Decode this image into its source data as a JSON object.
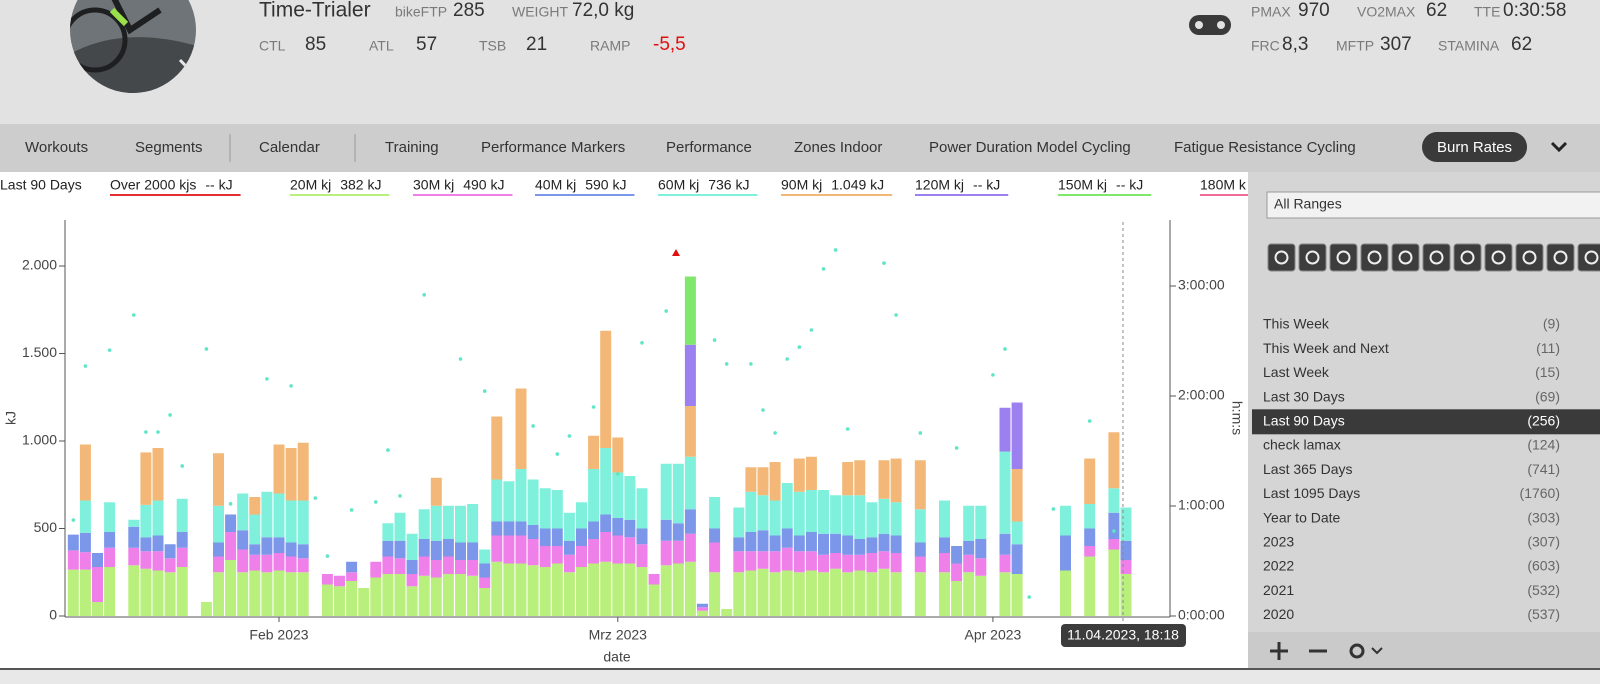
{
  "header": {
    "name": "Time-Trialer",
    "stats": [
      {
        "label": "bikeFTP",
        "value": "285"
      },
      {
        "label": "WEIGHT",
        "value": "72,0 kg"
      },
      {
        "label": "CTL",
        "value": "85"
      },
      {
        "label": "ATL",
        "value": "57"
      },
      {
        "label": "TSB",
        "value": "21"
      },
      {
        "label": "RAMP",
        "value": "-5,5",
        "color": "#e01010"
      },
      {
        "label": "PMAX",
        "value": "970"
      },
      {
        "label": "VO2MAX",
        "value": "62"
      },
      {
        "label": "TTE",
        "value": "0:30:58"
      },
      {
        "label": "FRC",
        "value": "8,3"
      },
      {
        "label": "MFTP",
        "value": "307"
      },
      {
        "label": "STAMINA",
        "value": "62"
      }
    ]
  },
  "nav": {
    "items": [
      "Workouts",
      "Segments",
      "Calendar",
      "Training",
      "Performance Markers",
      "Performance",
      "Zones Indoor",
      "Power Duration Model Cycling",
      "Fatigue Resistance Cycling",
      "Burn Rates"
    ],
    "active": 9
  },
  "sidebar": {
    "dropdown": "All Ranges",
    "ranges": [
      {
        "label": "This Week",
        "count": "(9)"
      },
      {
        "label": "This Week and Next",
        "count": "(11)"
      },
      {
        "label": "Last Week",
        "count": "(15)"
      },
      {
        "label": "Last 30 Days",
        "count": "(69)"
      },
      {
        "label": "Last 90 Days",
        "count": "(256)"
      },
      {
        "label": "check lamax",
        "count": "(124)"
      },
      {
        "label": "Last 365 Days",
        "count": "(741)"
      },
      {
        "label": "Last 1095 Days",
        "count": "(1760)"
      },
      {
        "label": "Year to Date",
        "count": "(303)"
      },
      {
        "label": "2023",
        "count": "(307)"
      },
      {
        "label": "2022",
        "count": "(603)"
      },
      {
        "label": "2021",
        "count": "(532)"
      },
      {
        "label": "2020",
        "count": "(537)"
      }
    ],
    "selected": 4
  },
  "chart_data": {
    "type": "bar",
    "stacked": true,
    "range_label": "Last 90 Days",
    "ylabel": "kJ",
    "y2label": "h:m:s",
    "xlabel": "date",
    "tooltip": "11.04.2023, 18:18",
    "ylim": [
      0,
      2263
    ],
    "yticks": [
      0,
      500,
      {
        "value": 1000,
        "label": "1.000"
      },
      {
        "value": 1500,
        "label": "1.500"
      },
      {
        "value": 2000,
        "label": "2.000"
      }
    ],
    "y2lim": [
      0,
      12960
    ],
    "y2ticks": [
      {
        "value": 0,
        "label": "0:00:00"
      },
      {
        "value": 3600,
        "label": "1:00:00"
      },
      {
        "value": 7200,
        "label": "2:00:00"
      },
      {
        "value": 10800,
        "label": "3:00:00"
      }
    ],
    "categories": [
      null,
      null,
      null,
      null,
      null,
      null,
      null,
      null,
      null,
      null,
      null,
      null,
      null,
      null,
      null,
      null,
      null,
      null,
      "Feb 2023",
      null,
      null,
      null,
      null,
      null,
      null,
      null,
      null,
      null,
      null,
      null,
      null,
      null,
      null,
      null,
      null,
      null,
      null,
      null,
      null,
      null,
      null,
      null,
      null,
      null,
      null,
      null,
      "Mrz 2023",
      null,
      null,
      null,
      null,
      null,
      null,
      null,
      null,
      null,
      null,
      null,
      null,
      null,
      null,
      null,
      null,
      null,
      null,
      null,
      null,
      null,
      null,
      null,
      null,
      null,
      null,
      null,
      null,
      null,
      null,
      "Apr 2023",
      null,
      null,
      null,
      null,
      null,
      null,
      null,
      null,
      null,
      null,
      null,
      null,
      null
    ],
    "legend_extra": [
      {
        "name": "Over 2000 kjs",
        "value": "-- kJ",
        "color": "#e53030"
      },
      {
        "name": "180M k",
        "color": "#f06a9a"
      }
    ],
    "series": [
      {
        "name": "20M kj",
        "legend_value": "382 kJ",
        "color": "#b9ef7c",
        "values": [
          null,
          265,
          265,
          80,
          280,
          null,
          290,
          270,
          260,
          250,
          280,
          null,
          80,
          250,
          320,
          250,
          260,
          250,
          260,
          250,
          250,
          null,
          180,
          170,
          200,
          160,
          220,
          240,
          240,
          170,
          230,
          220,
          240,
          240,
          230,
          160,
          310,
          300,
          300,
          290,
          280,
          300,
          250,
          280,
          300,
          310,
          300,
          300,
          280,
          180,
          290,
          300,
          310,
          30,
          250,
          40,
          250,
          260,
          270,
          250,
          260,
          250,
          260,
          250,
          270,
          250,
          260,
          250,
          270,
          250,
          null,
          250,
          null,
          250,
          200,
          250,
          230,
          null,
          250,
          240,
          null,
          null,
          null,
          260,
          null,
          340,
          null,
          380,
          240,
          null,
          null
        ]
      },
      {
        "name": "30M kj",
        "legend_value": "490 kJ",
        "color": "#ef7fe9",
        "values": [
          null,
          110,
          100,
          200,
          110,
          null,
          100,
          100,
          110,
          80,
          110,
          null,
          0,
          90,
          160,
          130,
          90,
          100,
          100,
          90,
          80,
          null,
          60,
          60,
          50,
          0,
          90,
          100,
          90,
          70,
          110,
          100,
          100,
          80,
          90,
          60,
          150,
          160,
          160,
          150,
          120,
          100,
          100,
          120,
          140,
          170,
          160,
          150,
          130,
          60,
          140,
          130,
          160,
          20,
          170,
          0,
          120,
          110,
          100,
          120,
          130,
          120,
          110,
          100,
          90,
          100,
          90,
          110,
          100,
          110,
          null,
          90,
          null,
          110,
          100,
          100,
          100,
          null,
          100,
          0,
          null,
          null,
          null,
          0,
          null,
          60,
          null,
          60,
          80,
          null,
          null
        ]
      },
      {
        "name": "40M kj",
        "legend_value": "590 kJ",
        "color": "#7c96e9",
        "values": [
          null,
          90,
          110,
          80,
          90,
          null,
          120,
          80,
          90,
          80,
          90,
          null,
          0,
          80,
          100,
          110,
          60,
          100,
          90,
          80,
          80,
          null,
          0,
          0,
          60,
          0,
          0,
          90,
          100,
          80,
          100,
          110,
          100,
          100,
          100,
          80,
          80,
          80,
          80,
          80,
          100,
          100,
          80,
          100,
          100,
          100,
          100,
          100,
          90,
          0,
          120,
          100,
          140,
          20,
          80,
          0,
          80,
          110,
          120,
          90,
          110,
          90,
          110,
          120,
          110,
          110,
          90,
          90,
          100,
          100,
          null,
          80,
          null,
          90,
          100,
          80,
          110,
          null,
          120,
          170,
          null,
          null,
          null,
          200,
          null,
          100,
          null,
          150,
          110,
          null,
          null
        ]
      },
      {
        "name": "60M kj",
        "legend_value": "736 kJ",
        "color": "#7ff0dc",
        "values": [
          null,
          0,
          185,
          0,
          170,
          null,
          40,
          185,
          200,
          0,
          190,
          null,
          0,
          210,
          0,
          210,
          170,
          260,
          250,
          240,
          250,
          null,
          0,
          0,
          0,
          0,
          0,
          100,
          160,
          150,
          170,
          200,
          190,
          210,
          220,
          80,
          240,
          230,
          300,
          260,
          230,
          220,
          160,
          150,
          300,
          380,
          260,
          250,
          230,
          0,
          320,
          340,
          300,
          0,
          180,
          0,
          170,
          230,
          200,
          200,
          260,
          250,
          240,
          250,
          220,
          230,
          250,
          200,
          200,
          190,
          null,
          190,
          null,
          210,
          0,
          200,
          190,
          null,
          470,
          130,
          null,
          null,
          null,
          170,
          null,
          140,
          null,
          140,
          190,
          null,
          null
        ]
      },
      {
        "name": "90M kj",
        "legend_value": "1.049 kJ",
        "color": "#f3b877",
        "values": [
          null,
          0,
          320,
          0,
          0,
          null,
          0,
          300,
          300,
          0,
          0,
          null,
          0,
          300,
          0,
          0,
          100,
          0,
          280,
          300,
          330,
          null,
          0,
          0,
          0,
          0,
          0,
          0,
          0,
          0,
          0,
          160,
          0,
          0,
          0,
          0,
          360,
          0,
          460,
          0,
          0,
          0,
          0,
          0,
          190,
          670,
          200,
          0,
          0,
          0,
          0,
          0,
          290,
          0,
          0,
          0,
          0,
          140,
          160,
          220,
          0,
          190,
          190,
          0,
          0,
          190,
          200,
          0,
          220,
          250,
          null,
          280,
          null,
          0,
          0,
          0,
          0,
          null,
          0,
          300,
          null,
          null,
          null,
          0,
          null,
          260,
          null,
          320,
          0,
          null,
          null
        ]
      },
      {
        "name": "120M kj",
        "legend_value": "-- kJ",
        "color": "#9d80ef",
        "values": [
          null,
          0,
          0,
          0,
          0,
          null,
          0,
          0,
          0,
          0,
          0,
          null,
          0,
          0,
          0,
          0,
          0,
          0,
          0,
          0,
          0,
          null,
          0,
          0,
          0,
          0,
          0,
          0,
          0,
          0,
          0,
          0,
          0,
          0,
          0,
          0,
          0,
          0,
          0,
          0,
          0,
          0,
          0,
          0,
          0,
          0,
          0,
          0,
          0,
          0,
          0,
          0,
          350,
          0,
          0,
          0,
          0,
          0,
          0,
          0,
          0,
          0,
          0,
          0,
          0,
          0,
          0,
          0,
          0,
          0,
          null,
          0,
          null,
          0,
          0,
          0,
          0,
          null,
          250,
          380,
          null,
          null,
          null,
          0,
          null,
          0,
          null,
          0,
          0,
          null,
          null
        ]
      },
      {
        "name": "150M kj",
        "legend_value": "-- kJ",
        "color": "#7fe86a",
        "values": [
          null,
          0,
          0,
          0,
          0,
          null,
          0,
          0,
          0,
          0,
          0,
          null,
          0,
          0,
          0,
          0,
          0,
          0,
          0,
          0,
          0,
          null,
          0,
          0,
          0,
          0,
          0,
          0,
          0,
          0,
          0,
          0,
          0,
          0,
          0,
          0,
          0,
          0,
          0,
          0,
          0,
          0,
          0,
          0,
          0,
          0,
          0,
          0,
          0,
          0,
          0,
          0,
          390,
          0,
          0,
          0,
          0,
          0,
          0,
          0,
          0,
          0,
          0,
          0,
          0,
          0,
          0,
          0,
          0,
          0,
          null,
          0,
          null,
          0,
          0,
          0,
          0,
          null,
          0,
          0,
          null,
          null,
          null,
          0,
          null,
          0,
          null,
          0,
          0,
          null,
          null
        ]
      },
      {
        "type": "scatter",
        "axis": "y2",
        "color": "#5fe6c6",
        "values": [
          null,
          3140,
          8180,
          null,
          8700,
          null,
          9850,
          6020,
          6020,
          6580,
          4910,
          null,
          8740,
          null,
          3670,
          null,
          null,
          7760,
          null,
          7530,
          null,
          3860,
          1960,
          null,
          3470,
          null,
          3730,
          5430,
          3930,
          null,
          10510,
          null,
          null,
          8410,
          null,
          7360,
          null,
          null,
          null,
          6220,
          null,
          5300,
          5890,
          null,
          6840,
          null,
          4650,
          null,
          8940,
          null,
          9980,
          null,
          null,
          null,
          9030,
          8250,
          null,
          8250,
          6740,
          5990,
          8410,
          8800,
          9360,
          11360,
          11980,
          6120,
          null,
          null,
          11550,
          9850,
          null,
          5990,
          null,
          null,
          5500,
          null,
          null,
          7890,
          8740,
          null,
          620,
          null,
          3500,
          null,
          null,
          6380,
          null,
          2780,
          null,
          null,
          null
        ]
      }
    ]
  }
}
